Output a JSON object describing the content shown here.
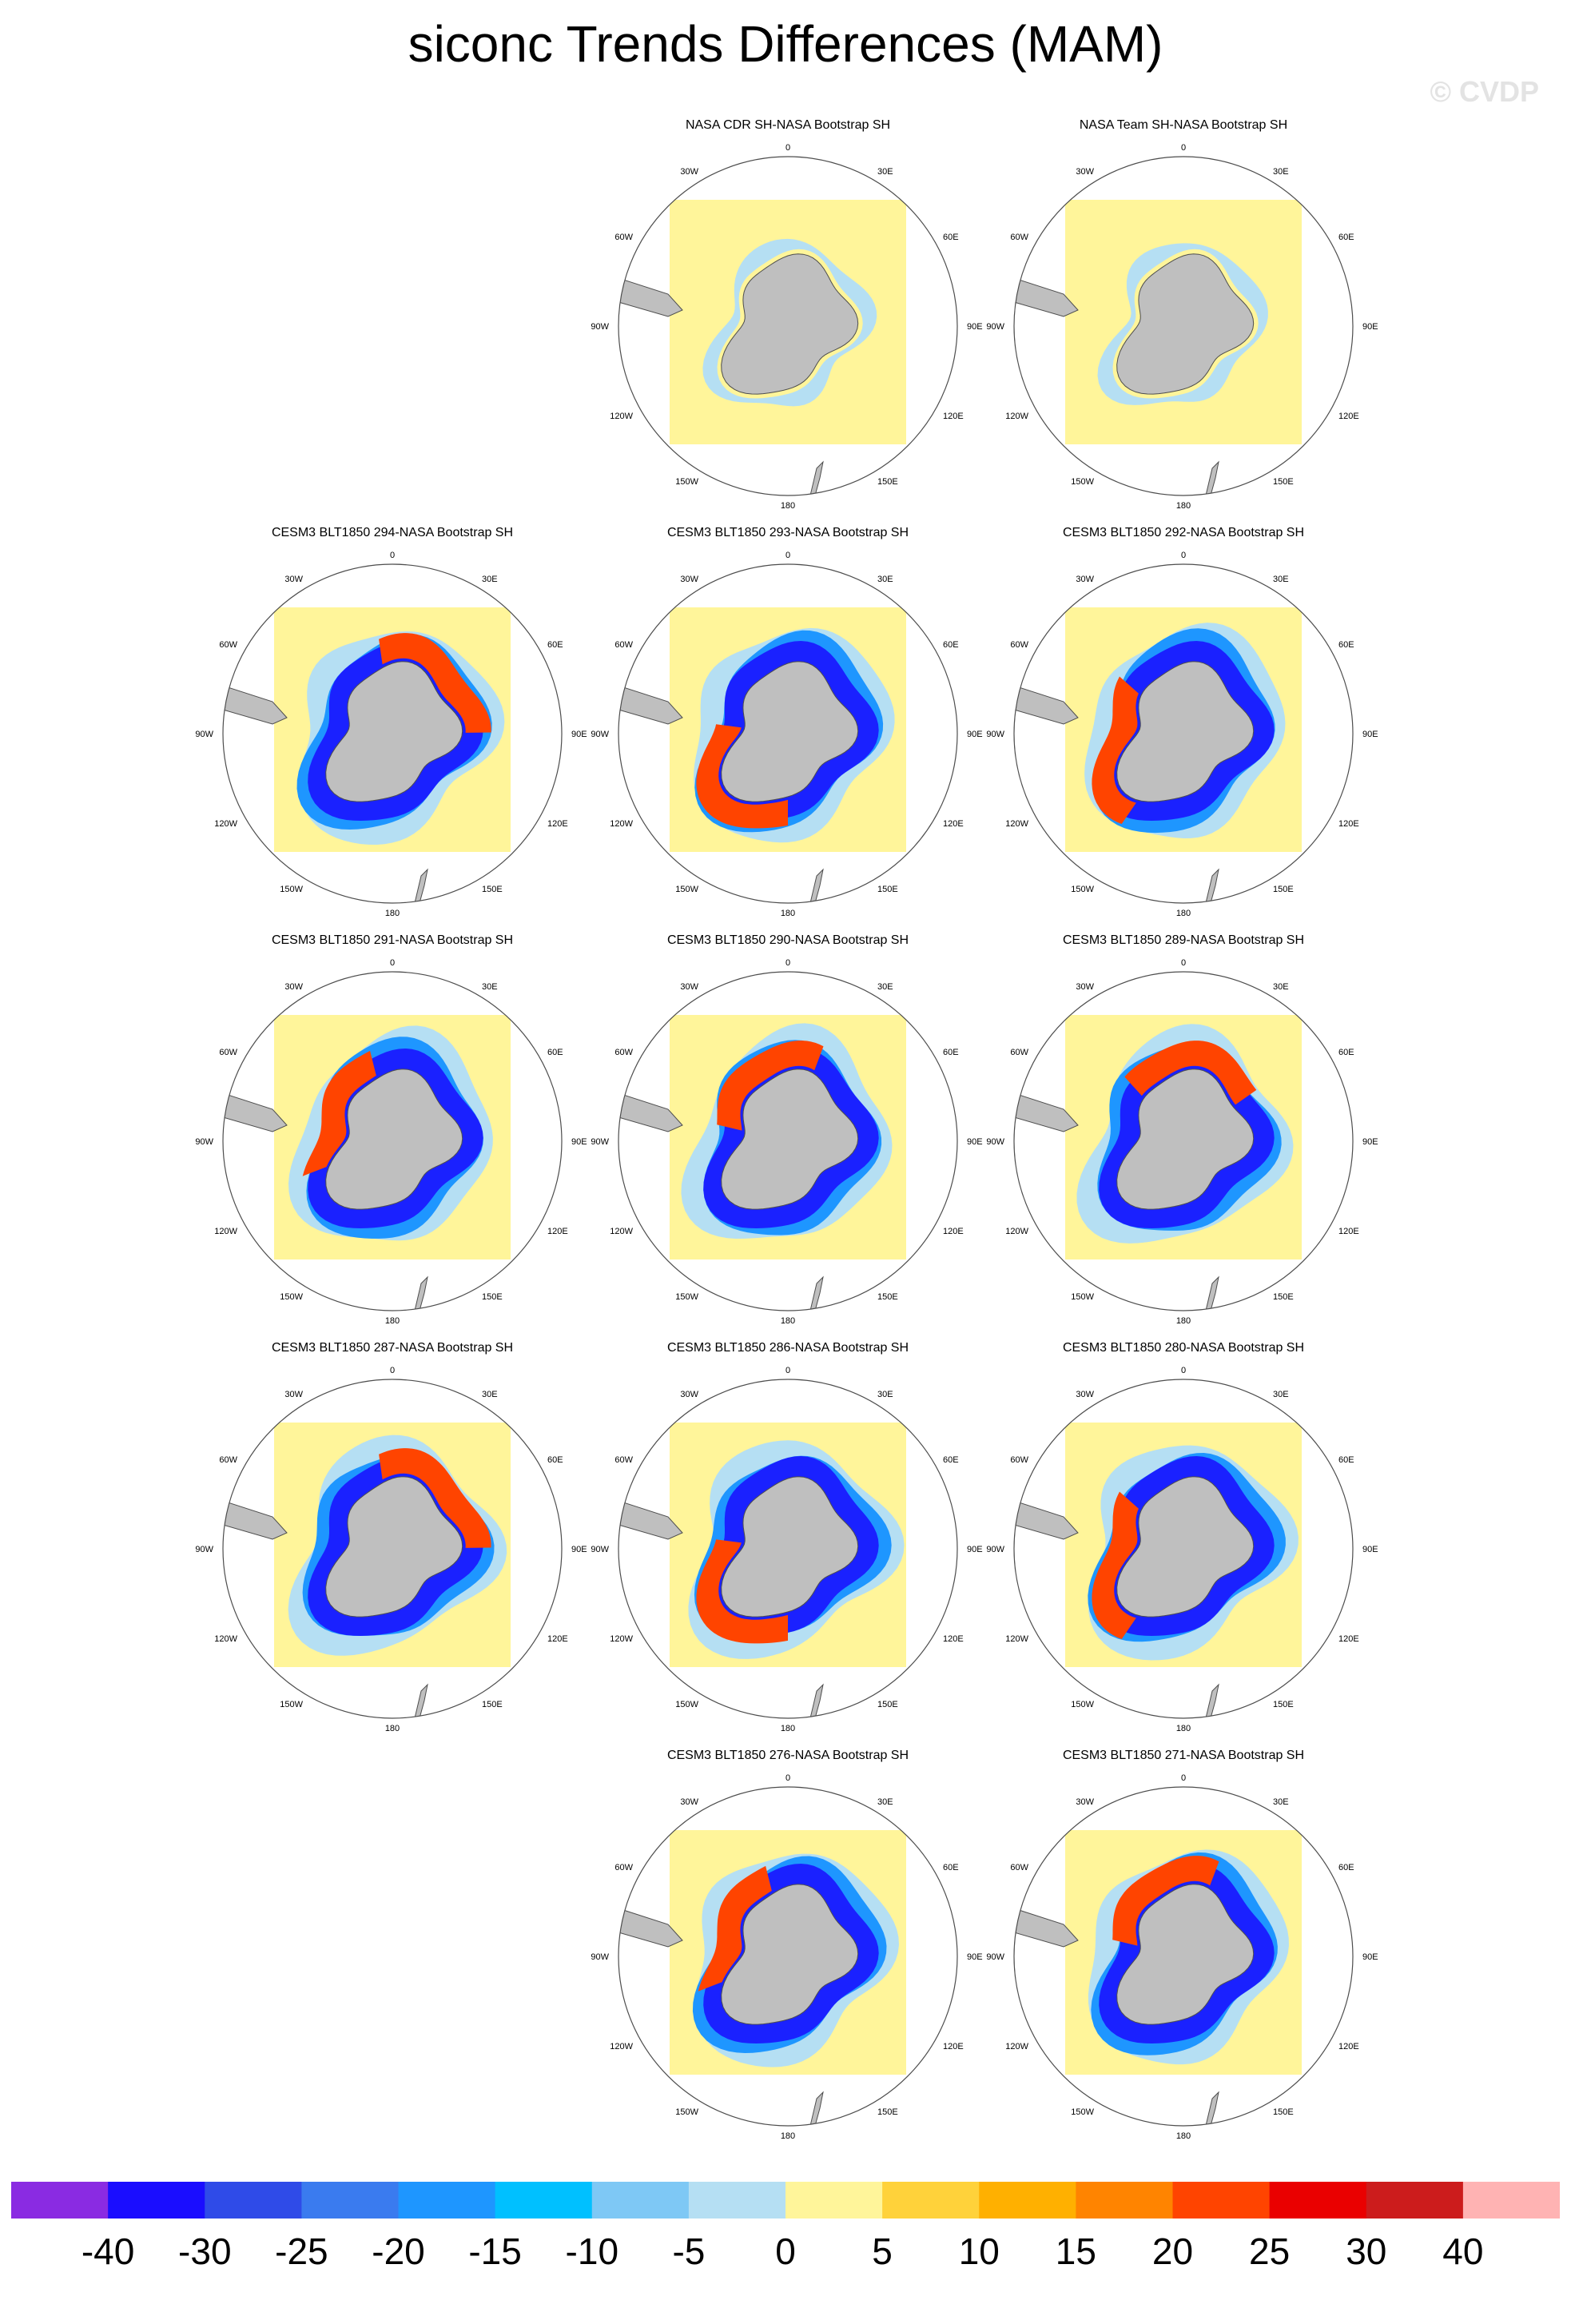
{
  "title": "siconc Trends Differences (MAM)",
  "watermark": "© CVDP",
  "map_labels": {
    "top": "0",
    "bottom": "180",
    "deg30e": "30E",
    "deg60e": "60E",
    "deg90e": "90E",
    "deg120e": "120E",
    "deg150e": "150E",
    "deg30w": "30W",
    "deg60w": "60W",
    "deg90w": "90W",
    "deg120w": "120W",
    "deg150w": "150W"
  },
  "panels": [
    {
      "title": "NASA CDR SH-NASA Bootstrap SH",
      "pattern": "obs"
    },
    {
      "title": "NASA Team SH-NASA Bootstrap SH",
      "pattern": "obs2"
    },
    {
      "title": "CESM3 BLT1850 294-NASA Bootstrap SH",
      "pattern": "model"
    },
    {
      "title": "CESM3 BLT1850 293-NASA Bootstrap SH",
      "pattern": "model"
    },
    {
      "title": "CESM3 BLT1850 292-NASA Bootstrap SH",
      "pattern": "model"
    },
    {
      "title": "CESM3 BLT1850 291-NASA Bootstrap SH",
      "pattern": "model"
    },
    {
      "title": "CESM3 BLT1850 290-NASA Bootstrap SH",
      "pattern": "model"
    },
    {
      "title": "CESM3 BLT1850 289-NASA Bootstrap SH",
      "pattern": "model"
    },
    {
      "title": "CESM3 BLT1850 287-NASA Bootstrap SH",
      "pattern": "model"
    },
    {
      "title": "CESM3 BLT1850 286-NASA Bootstrap SH",
      "pattern": "model"
    },
    {
      "title": "CESM3 BLT1850 280-NASA Bootstrap SH",
      "pattern": "model"
    },
    {
      "title": "CESM3 BLT1850 276-NASA Bootstrap SH",
      "pattern": "model"
    },
    {
      "title": "CESM3 BLT1850 271-NASA Bootstrap SH",
      "pattern": "model"
    }
  ],
  "colorbar": {
    "colors": [
      "#8a2be2",
      "#1a0dff",
      "#2f4be8",
      "#3a7bef",
      "#1e96ff",
      "#00c0ff",
      "#7ec8f5",
      "#b5dff3",
      "#fff59a",
      "#ffd23a",
      "#ffb000",
      "#ff8400",
      "#ff4400",
      "#ea0000",
      "#cc1c1c",
      "#ffb3b3"
    ],
    "labels": [
      "-40",
      "-30",
      "-25",
      "-20",
      "-15",
      "-10",
      "-5",
      "0",
      "5",
      "10",
      "15",
      "20",
      "25",
      "30",
      "40"
    ]
  },
  "colors": {
    "background_field": "#fff59a",
    "land": "#bfbfbf",
    "outline": "#4d4d4d"
  }
}
